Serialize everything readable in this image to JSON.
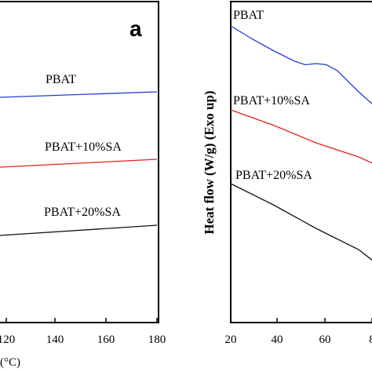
{
  "chart_data": [
    {
      "type": "line",
      "panel_label": "a",
      "xlabel_visible": "(°C)",
      "xlim": [
        110,
        180
      ],
      "xticks": [
        "120",
        "140",
        "160",
        "180"
      ],
      "series": [
        {
          "name": "PBAT",
          "color": "#1f3fd6",
          "x": [
            110,
            180
          ],
          "y": [
            0.0,
            0.0
          ]
        },
        {
          "name": "PBAT+10%SA",
          "color": "#e0201c",
          "x": [
            110,
            180
          ],
          "y": [
            -0.3,
            -0.3
          ]
        },
        {
          "name": "PBAT+20%SA",
          "color": "#111111",
          "x": [
            110,
            180
          ],
          "y": [
            -0.58,
            -0.58
          ]
        }
      ]
    },
    {
      "type": "line",
      "ylabel": "Heat flow (W/g) (Exo up)",
      "xlim": [
        20,
        90
      ],
      "xticks": [
        "20",
        "40",
        "60",
        "8"
      ],
      "series": [
        {
          "name": "PBAT",
          "color": "#1f3fd6",
          "x": [
            20,
            30,
            40,
            50,
            55,
            60,
            65,
            70,
            80,
            90
          ],
          "y": [
            0.0,
            -0.055,
            -0.105,
            -0.15,
            -0.165,
            -0.16,
            -0.165,
            -0.19,
            -0.28,
            -0.36
          ]
        },
        {
          "name": "PBAT+10%SA",
          "color": "#e0201c",
          "x": [
            20,
            40,
            60,
            80,
            90
          ],
          "y": [
            -0.46,
            -0.525,
            -0.6,
            -0.66,
            -0.7
          ]
        },
        {
          "name": "PBAT+20%SA",
          "color": "#111111",
          "x": [
            20,
            40,
            60,
            80,
            90
          ],
          "y": [
            -0.9,
            -0.99,
            -1.09,
            -1.18,
            -1.25
          ]
        }
      ]
    }
  ]
}
